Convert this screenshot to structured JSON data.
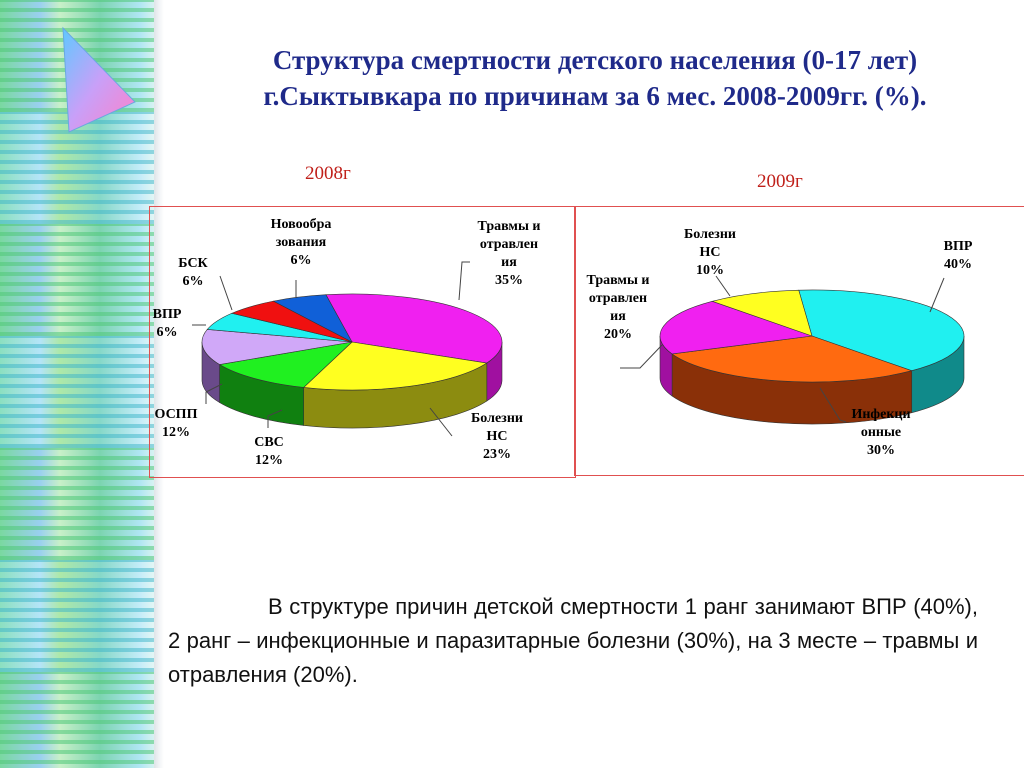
{
  "title_line1": "Структура смертности детского населения (0-17 лет)",
  "title_line2": "г.Сыктывкара по причинам за 6 мес. 2008-2009гг. (%).",
  "chart_data": [
    {
      "type": "pie",
      "title": "2008г",
      "slices": [
        {
          "label": [
            "Травмы и",
            "отравлен",
            "ия"
          ],
          "value": 35,
          "value_text": "35%",
          "color": "#f020f0",
          "side": "#a010a0"
        },
        {
          "label": [
            "Болезни",
            "НС"
          ],
          "value": 23,
          "value_text": "23%",
          "color": "#ffff20",
          "side": "#8c8c10"
        },
        {
          "label": [
            "СВС"
          ],
          "value": 12,
          "value_text": "12%",
          "color": "#20f020",
          "side": "#108010"
        },
        {
          "label": [
            "ОСПП"
          ],
          "value": 12,
          "value_text": "12%",
          "color": "#d0a8f8",
          "side": "#6a4a8a"
        },
        {
          "label": [
            "ВПР"
          ],
          "value": 6,
          "value_text": "6%",
          "color": "#20f0f0",
          "side": "#108a8a"
        },
        {
          "label": [
            "БСК"
          ],
          "value": 6,
          "value_text": "6%",
          "color": "#f01010",
          "side": "#8a0808"
        },
        {
          "label": [
            "Новообра",
            "зования"
          ],
          "value": 6,
          "value_text": "6%",
          "color": "#1060d8",
          "side": "#083880"
        }
      ]
    },
    {
      "type": "pie",
      "title": "2009г",
      "slices": [
        {
          "label": [
            "ВПР"
          ],
          "value": 40,
          "value_text": "40%",
          "color": "#20f0f0",
          "side": "#108a8a"
        },
        {
          "label": [
            "Инфекци",
            "онные"
          ],
          "value": 30,
          "value_text": "30%",
          "color": "#ff6a10",
          "side": "#8a3008"
        },
        {
          "label": [
            "Травмы и",
            "отравлен",
            "ия"
          ],
          "value": 20,
          "value_text": "20%",
          "color": "#f020f0",
          "side": "#a010a0"
        },
        {
          "label": [
            "Болезни",
            "НС"
          ],
          "value": 10,
          "value_text": "10%",
          "color": "#ffff20",
          "side": "#8c8c10"
        }
      ]
    }
  ],
  "paragraph": "В структуре причин детской смертности 1 ранг занимают ВПР (40%), 2 ранг – инфекционные и паразитарные болезни (30%),  на 3 месте – травмы и отравления (20%)."
}
